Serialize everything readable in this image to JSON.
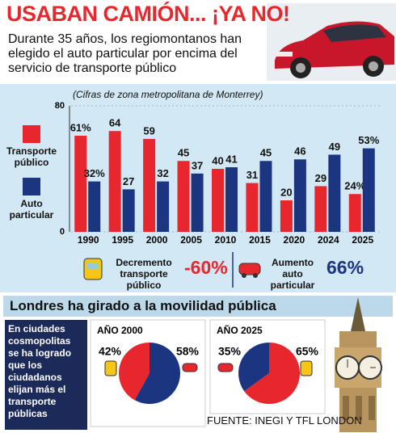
{
  "header": {
    "title": "USABAN CAMIÓN... ¡YA NO!",
    "subtitle": "Durante 35 años, los regiomontanos han elegido el auto particular por encima del servicio de transporte público"
  },
  "chart_data": [
    {
      "type": "bar",
      "subtitle": "(Cifras de zona metropolitana de Monterrey)",
      "categories": [
        "1990",
        "1995",
        "2000",
        "2005",
        "2010",
        "2015",
        "2020",
        "2024",
        "2025"
      ],
      "series": [
        {
          "name": "Transporte público",
          "color": "#e8262d",
          "values": [
            61,
            64,
            59,
            45,
            40,
            31,
            20,
            29,
            24
          ],
          "value_labels": [
            "61%",
            "64",
            "59",
            "45",
            "40",
            "31",
            "20",
            "29",
            "24%"
          ]
        },
        {
          "name": "Auto particular",
          "color": "#1c3580",
          "values": [
            32,
            27,
            32,
            37,
            41,
            45,
            46,
            49,
            53
          ],
          "value_labels": [
            "32%",
            "27",
            "32",
            "37",
            "41",
            "45",
            "46",
            "49",
            "53%"
          ]
        }
      ],
      "ylim": [
        0,
        80
      ],
      "yticks": [
        0,
        80
      ],
      "grid": true
    },
    {
      "type": "pie",
      "title": "AÑO 2000",
      "values": [
        42,
        58
      ],
      "value_labels": [
        "42%",
        "58%"
      ],
      "colors": [
        "#e8262d",
        "#1c3580"
      ]
    },
    {
      "type": "pie",
      "title": "AÑO 2025",
      "values": [
        35,
        65
      ],
      "value_labels": [
        "35%",
        "65%"
      ],
      "colors": [
        "#1c3580",
        "#e8262d"
      ]
    }
  ],
  "stats": [
    {
      "label": "Decremento transporte público",
      "value": "-60%"
    },
    {
      "label": "Aumento auto particular",
      "value": "66%"
    }
  ],
  "london": {
    "title": "Londres ha girado a la movilidad pública",
    "text": "En ciudades cosmopolitas se ha logrado que los ciudadanos elijan más el transporte públicas"
  },
  "source": "FUENTE: INEGI Y TFL LONDON"
}
